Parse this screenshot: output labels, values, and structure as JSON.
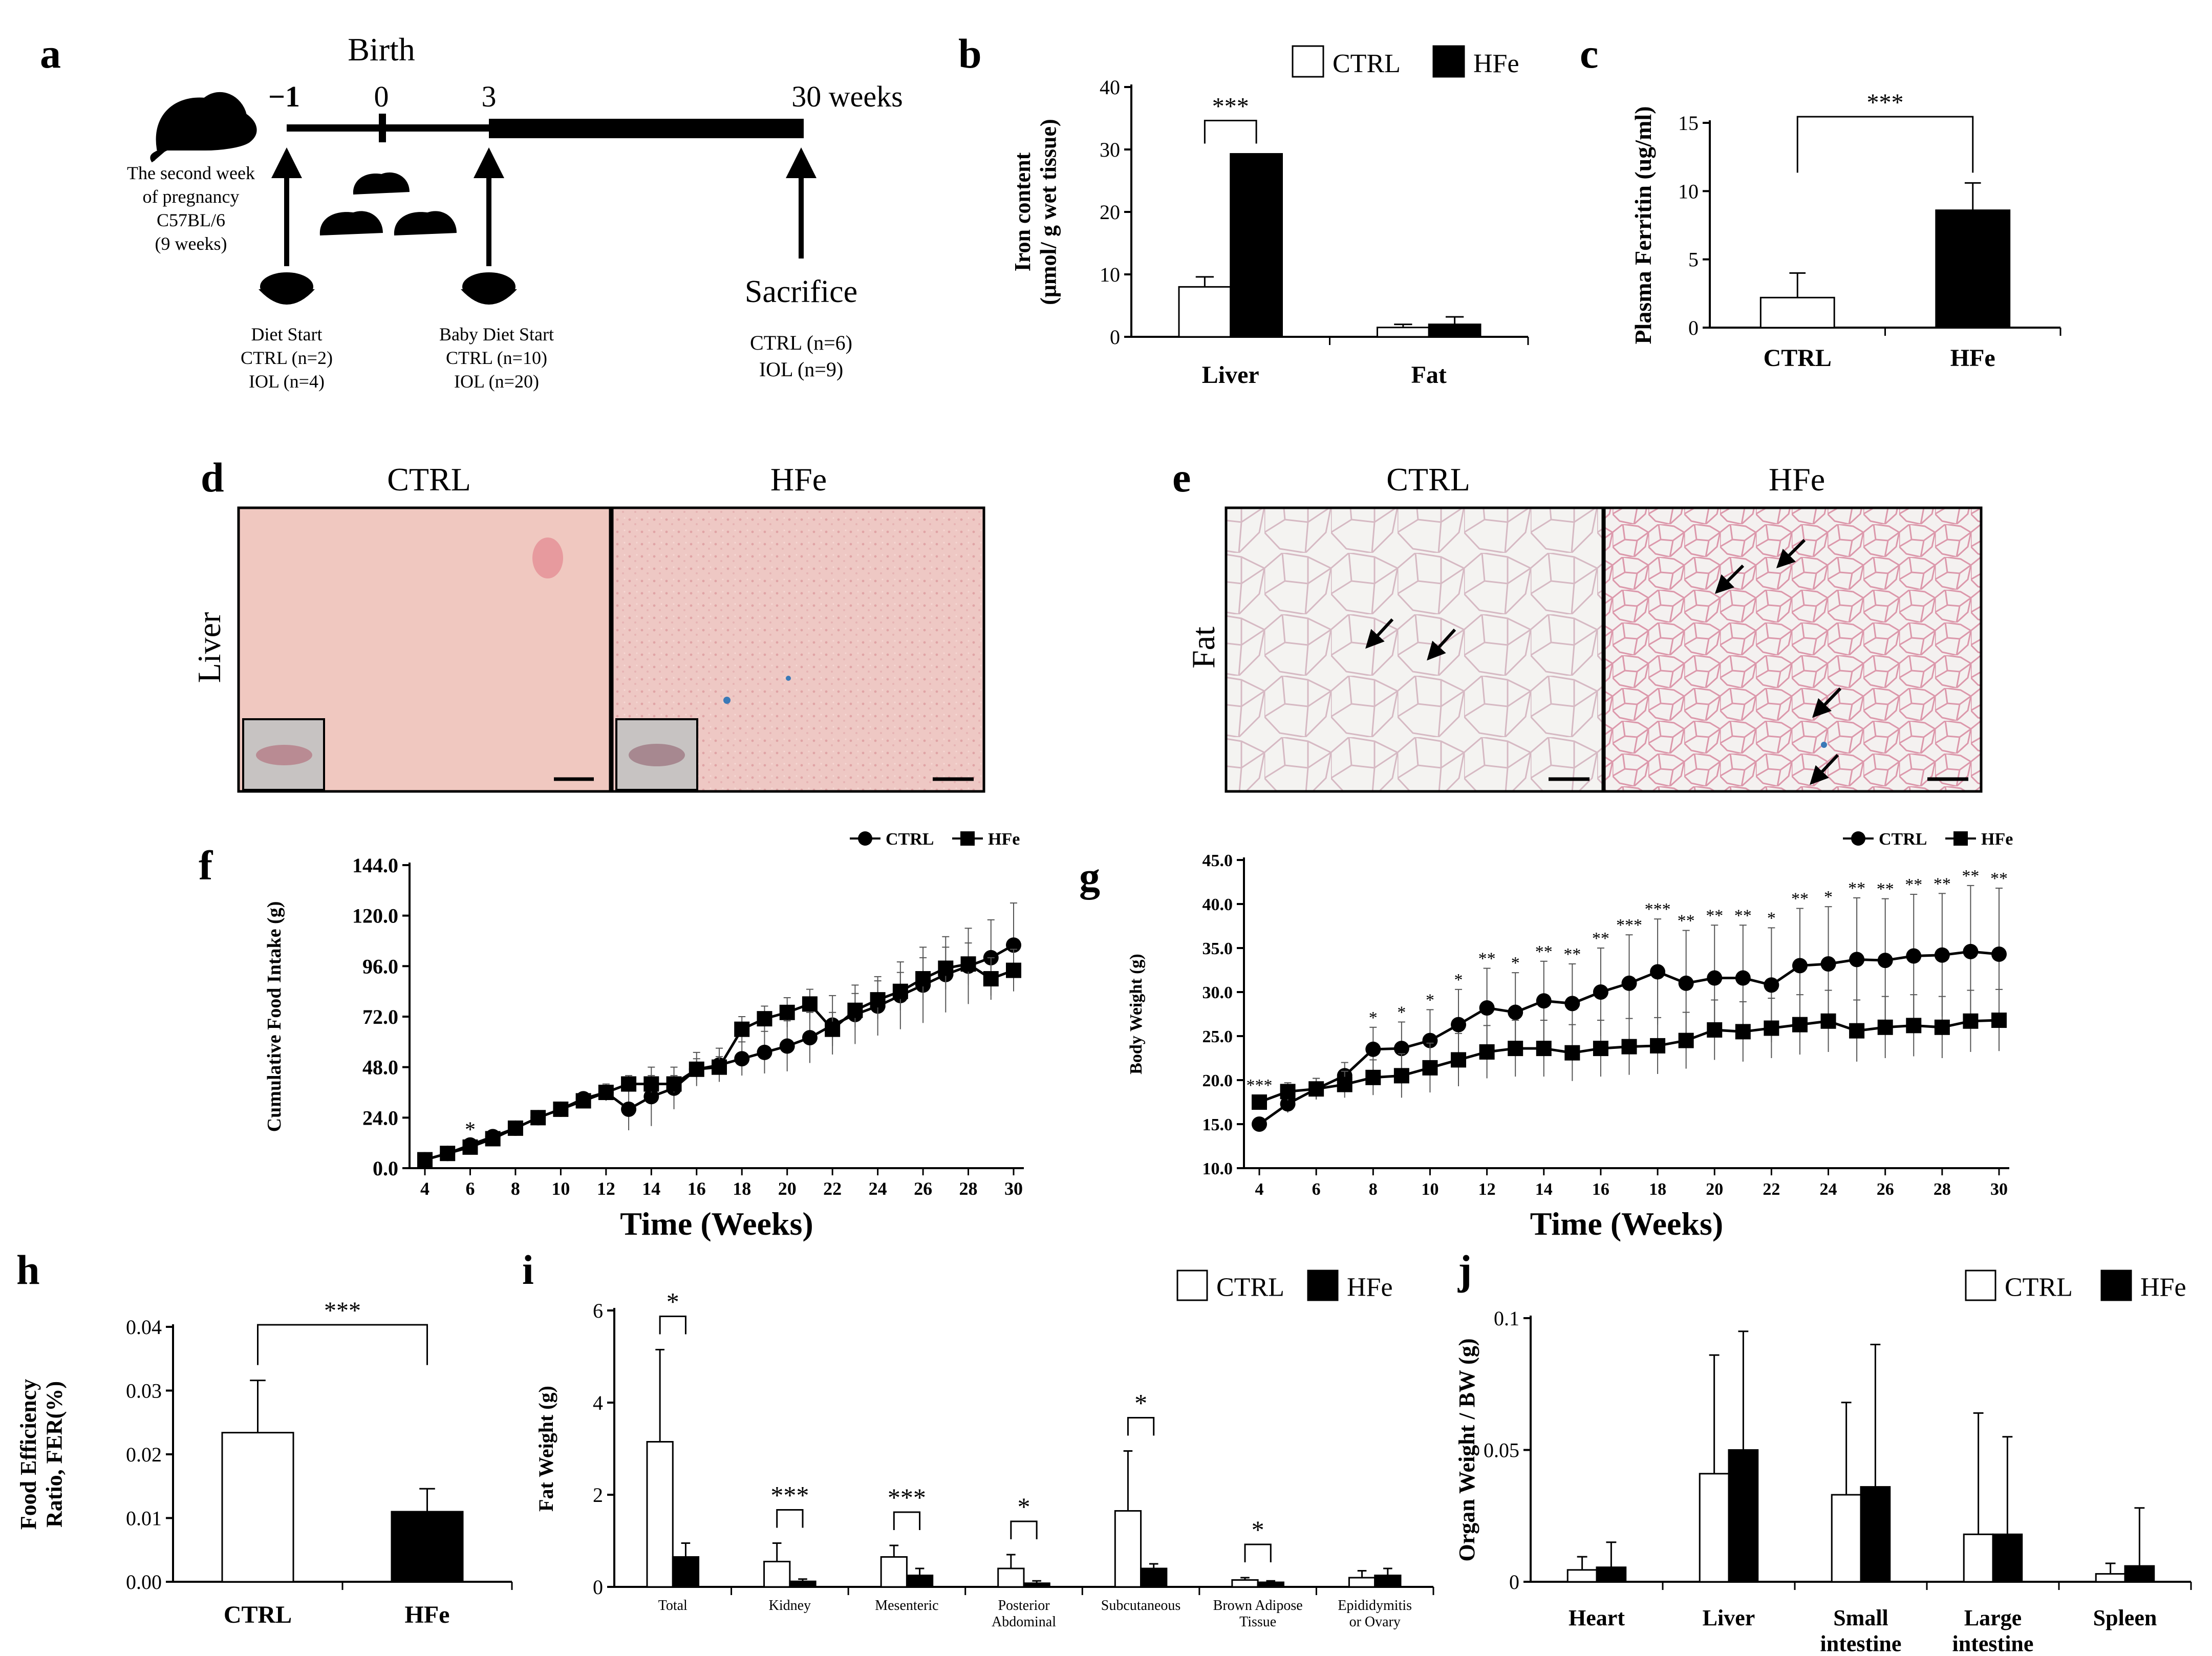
{
  "panel_letters": [
    "a",
    "b",
    "c",
    "d",
    "e",
    "f",
    "g",
    "h",
    "i",
    "j"
  ],
  "timeline": {
    "birth": "Birth",
    "ticks": [
      "−1",
      "0",
      "3",
      "30 weeks"
    ],
    "pregnancy": [
      "The second week",
      "of pregnancy",
      "C57BL/6",
      "(9 weeks)"
    ],
    "diet_start": [
      "Diet Start",
      "CTRL (n=2)",
      "IOL (n=4)"
    ],
    "baby_diet": [
      "Baby Diet Start",
      "CTRL (n=10)",
      "IOL (n=20)"
    ],
    "sacrifice": "Sacrifice",
    "sacrifice_n": [
      "CTRL (n=6)",
      "IOL (n=9)"
    ]
  },
  "legend": {
    "ctrl": "CTRL",
    "hfe": "HFe"
  },
  "micrographs": {
    "liver_row_label": "Liver",
    "fat_row_label": "Fat",
    "col_ctrl": "CTRL",
    "col_hfe": "HFe"
  },
  "colors": {
    "ctrl_fill": "#ffffff",
    "hfe_fill": "#000000",
    "liver_stain": "#f0c4bf",
    "fat_bg": "#f5f3f2"
  },
  "chart_data": [
    {
      "id": "b",
      "type": "bar",
      "ylabel_lines": [
        "Iron content",
        "(μmol/ g wet tissue)"
      ],
      "ylim": [
        0,
        40
      ],
      "yticks": [
        0,
        10,
        20,
        30,
        40
      ],
      "ytick_labels": [
        "0",
        "10",
        "20",
        "30",
        "40"
      ],
      "categories": [
        "Liver",
        "Fat"
      ],
      "series": [
        {
          "name": "CTRL",
          "values": [
            8.0,
            1.5
          ],
          "errors": [
            1.6,
            0.5
          ]
        },
        {
          "name": "HFe",
          "values": [
            29.3,
            2.0
          ],
          "errors": [
            0,
            1.2
          ]
        }
      ],
      "significance": [
        "***",
        ""
      ]
    },
    {
      "id": "c",
      "type": "bar",
      "ylabel": "Plasma Ferritin (ug/ml)",
      "ylim": [
        0,
        15
      ],
      "yticks": [
        0,
        5,
        10,
        15
      ],
      "ytick_labels": [
        "0",
        "5",
        "10",
        "15"
      ],
      "categories": [
        "CTRL",
        "HFe"
      ],
      "values": [
        2.2,
        8.6
      ],
      "errors": [
        1.8,
        2.0
      ],
      "significance": "***"
    },
    {
      "id": "f",
      "type": "line",
      "ylabel": "Cumulative Food Intake (g)",
      "xlabel": "Time (Weeks)",
      "ylim": [
        0,
        144
      ],
      "yticks": [
        0,
        24,
        48,
        72,
        96,
        120,
        144
      ],
      "ytick_labels": [
        "0.0",
        "24.0",
        "48.0",
        "72.0",
        "96.0",
        "120.0",
        "144.0"
      ],
      "xlim": [
        4,
        30
      ],
      "xticks": [
        4,
        6,
        8,
        10,
        12,
        14,
        16,
        18,
        20,
        22,
        24,
        26,
        28,
        30
      ],
      "xtick_labels": [
        "4",
        "6",
        "8",
        "10",
        "12",
        "14",
        "16",
        "18",
        "20",
        "22",
        "24",
        "26",
        "28",
        "30"
      ],
      "x": [
        4,
        5,
        6,
        7,
        8,
        9,
        10,
        11,
        12,
        13,
        14,
        15,
        16,
        17,
        18,
        19,
        20,
        21,
        22,
        23,
        24,
        25,
        26,
        27,
        28,
        29,
        30
      ],
      "series": [
        {
          "name": "CTRL",
          "marker": "circle",
          "values": [
            4,
            7,
            11,
            15,
            19,
            24,
            28,
            33,
            36,
            28,
            34,
            38,
            47,
            49,
            52,
            55,
            58,
            62,
            68,
            73,
            77,
            82,
            87,
            92,
            96,
            100,
            106
          ],
          "errors": [
            1,
            1,
            2,
            2,
            2,
            3,
            3,
            3,
            4,
            10,
            14,
            10,
            8,
            8,
            8,
            10,
            12,
            12,
            14,
            14,
            14,
            16,
            18,
            18,
            18,
            18,
            20
          ]
        },
        {
          "name": "HFe",
          "marker": "square",
          "values": [
            4,
            7,
            10,
            14,
            19,
            24,
            28,
            32,
            36,
            40,
            40,
            40,
            47,
            48,
            66,
            71,
            74,
            78,
            66,
            75,
            80,
            84,
            90,
            95,
            97,
            90,
            94
          ],
          "errors": [
            1,
            1,
            2,
            2,
            2,
            3,
            3,
            3,
            3,
            4,
            4,
            4,
            5,
            5,
            6,
            6,
            7,
            7,
            8,
            8,
            9,
            9,
            10,
            10,
            10,
            10,
            10
          ]
        }
      ],
      "annotations": [
        {
          "x": 6,
          "text": "*"
        }
      ]
    },
    {
      "id": "g",
      "type": "line",
      "ylabel": "Body Weight (g)",
      "xlabel": "Time (Weeks)",
      "ylim": [
        10,
        45
      ],
      "yticks": [
        10,
        15,
        20,
        25,
        30,
        35,
        40,
        45
      ],
      "ytick_labels": [
        "10.0",
        "15.0",
        "20.0",
        "25.0",
        "30.0",
        "35.0",
        "40.0",
        "45.0"
      ],
      "xlim": [
        4,
        30
      ],
      "xticks": [
        4,
        6,
        8,
        10,
        12,
        14,
        16,
        18,
        20,
        22,
        24,
        26,
        28,
        30
      ],
      "xtick_labels": [
        "4",
        "6",
        "8",
        "10",
        "12",
        "14",
        "16",
        "18",
        "20",
        "22",
        "24",
        "26",
        "28",
        "30"
      ],
      "x": [
        4,
        5,
        6,
        7,
        8,
        9,
        10,
        11,
        12,
        13,
        14,
        15,
        16,
        17,
        18,
        19,
        20,
        21,
        22,
        23,
        24,
        25,
        26,
        27,
        28,
        29,
        30
      ],
      "series": [
        {
          "name": "CTRL",
          "marker": "circle",
          "values": [
            15.0,
            17.3,
            19.0,
            20.5,
            23.5,
            23.6,
            24.5,
            26.3,
            28.2,
            27.7,
            29.0,
            28.7,
            30.0,
            31.0,
            32.3,
            31.0,
            31.6,
            31.6,
            30.8,
            33.0,
            33.2,
            33.7,
            33.6,
            34.1,
            34.2,
            34.6,
            34.3
          ],
          "errors": [
            0.6,
            1.0,
            1.2,
            1.5,
            2.5,
            3.0,
            3.5,
            4.0,
            4.5,
            4.5,
            4.5,
            4.5,
            5.0,
            5.5,
            6.0,
            6.0,
            6.0,
            6.0,
            6.5,
            6.5,
            6.5,
            7.0,
            7.0,
            7.0,
            7.0,
            7.5,
            7.5
          ]
        },
        {
          "name": "HFe",
          "marker": "square",
          "values": [
            17.5,
            18.7,
            19.0,
            19.5,
            20.3,
            20.5,
            21.4,
            22.3,
            23.2,
            23.6,
            23.6,
            23.1,
            23.6,
            23.8,
            23.9,
            24.5,
            25.7,
            25.5,
            25.9,
            26.3,
            26.7,
            25.6,
            26.0,
            26.2,
            26.0,
            26.7,
            26.8
          ],
          "errors": [
            0.8,
            1.0,
            1.2,
            1.5,
            2.0,
            2.5,
            2.8,
            3.0,
            3.0,
            3.2,
            3.2,
            3.2,
            3.2,
            3.2,
            3.2,
            3.2,
            3.4,
            3.4,
            3.4,
            3.4,
            3.5,
            3.5,
            3.5,
            3.5,
            3.5,
            3.5,
            3.5
          ]
        }
      ],
      "annotations": [
        {
          "x": 4,
          "text": "***"
        },
        {
          "x": 8,
          "text": "*"
        },
        {
          "x": 9,
          "text": "*"
        },
        {
          "x": 10,
          "text": "*"
        },
        {
          "x": 11,
          "text": "*"
        },
        {
          "x": 12,
          "text": "**"
        },
        {
          "x": 13,
          "text": "*"
        },
        {
          "x": 14,
          "text": "**"
        },
        {
          "x": 15,
          "text": "**"
        },
        {
          "x": 16,
          "text": "**"
        },
        {
          "x": 17,
          "text": "***"
        },
        {
          "x": 18,
          "text": "***"
        },
        {
          "x": 19,
          "text": "**"
        },
        {
          "x": 20,
          "text": "**"
        },
        {
          "x": 21,
          "text": "**"
        },
        {
          "x": 22,
          "text": "*"
        },
        {
          "x": 23,
          "text": "**"
        },
        {
          "x": 24,
          "text": "*"
        },
        {
          "x": 25,
          "text": "**"
        },
        {
          "x": 26,
          "text": "**"
        },
        {
          "x": 27,
          "text": "**"
        },
        {
          "x": 28,
          "text": "**"
        },
        {
          "x": 29,
          "text": "**"
        },
        {
          "x": 30,
          "text": "**"
        }
      ]
    },
    {
      "id": "h",
      "type": "bar",
      "ylabel_lines": [
        "Food Efficiency",
        "Ratio, FER(%)"
      ],
      "ylim": [
        0,
        0.04
      ],
      "yticks": [
        0,
        0.01,
        0.02,
        0.03,
        0.04
      ],
      "ytick_labels": [
        "0.00",
        "0.01",
        "0.02",
        "0.03",
        "0.04"
      ],
      "categories": [
        "CTRL",
        "HFe"
      ],
      "values": [
        0.0234,
        0.011
      ],
      "errors": [
        0.0082,
        0.0036
      ],
      "significance": "***"
    },
    {
      "id": "i",
      "type": "bar",
      "ylabel": "Fat Weight (g)",
      "ylim": [
        0,
        6
      ],
      "yticks": [
        0,
        2,
        4,
        6
      ],
      "ytick_labels": [
        "0",
        "2",
        "4",
        "6"
      ],
      "categories": [
        "Total",
        "Kidney",
        "Mesenteric",
        "Posterior Abdominal",
        "Subcutaneous",
        "Brown Adipose Tissue",
        "Epididymitis or Ovary"
      ],
      "category_lines": [
        [
          "Total"
        ],
        [
          "Kidney"
        ],
        [
          "Mesenteric"
        ],
        [
          "Posterior",
          "Abdominal"
        ],
        [
          "Subcutaneous"
        ],
        [
          "Brown Adipose",
          "Tissue"
        ],
        [
          "Epididymitis",
          "or Ovary"
        ]
      ],
      "series": [
        {
          "name": "CTRL",
          "values": [
            3.15,
            0.55,
            0.65,
            0.4,
            1.65,
            0.15,
            0.2
          ],
          "errors": [
            2.0,
            0.4,
            0.25,
            0.3,
            1.3,
            0.05,
            0.15
          ]
        },
        {
          "name": "HFe",
          "values": [
            0.65,
            0.12,
            0.25,
            0.08,
            0.4,
            0.1,
            0.25
          ],
          "errors": [
            0.3,
            0.05,
            0.15,
            0.05,
            0.1,
            0.03,
            0.15
          ]
        }
      ],
      "significance": [
        "*",
        "***",
        "***",
        "*",
        "*",
        "*",
        ""
      ]
    },
    {
      "id": "j",
      "type": "bar",
      "ylabel": "Organ Weight / BW (g)",
      "ylim": [
        0,
        0.1
      ],
      "yticks": [
        0,
        0.05,
        0.1
      ],
      "ytick_labels": [
        "0",
        "0.05",
        "0.1"
      ],
      "categories": [
        "Heart",
        "Liver",
        "Small intestine",
        "Large intestine",
        "Spleen"
      ],
      "category_lines": [
        [
          "Heart"
        ],
        [
          "Liver"
        ],
        [
          "Small",
          "intestine"
        ],
        [
          "Large",
          "intestine"
        ],
        [
          "Spleen"
        ]
      ],
      "series": [
        {
          "name": "CTRL",
          "values": [
            0.0045,
            0.041,
            0.033,
            0.018,
            0.003
          ],
          "errors": [
            0.005,
            0.045,
            0.035,
            0.046,
            0.004
          ]
        },
        {
          "name": "HFe",
          "values": [
            0.0055,
            0.05,
            0.036,
            0.018,
            0.006
          ],
          "errors": [
            0.0095,
            0.045,
            0.054,
            0.037,
            0.022
          ]
        }
      ]
    }
  ]
}
